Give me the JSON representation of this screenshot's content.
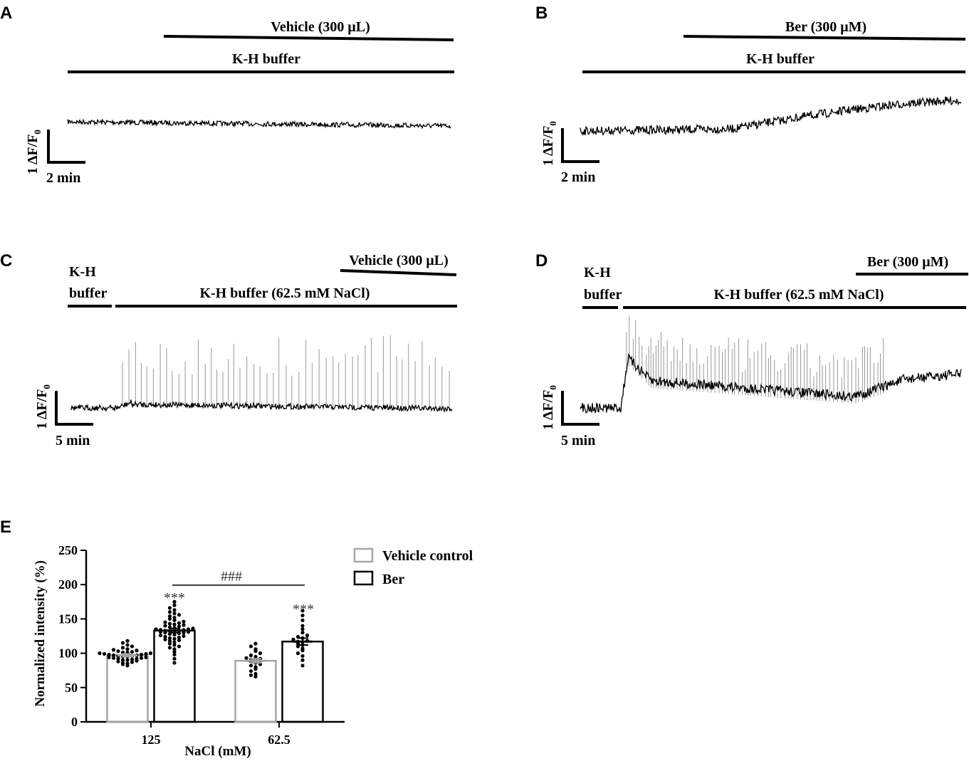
{
  "chart_data": [
    {
      "id": "A",
      "type": "line",
      "panel_label": "A",
      "treatment_bars": [
        {
          "label": "Vehicle (300 μL)"
        },
        {
          "label": "K-H buffer"
        }
      ],
      "scale_bar": {
        "y": "1 ΔF/F",
        "y_sub": "0",
        "x": "2 min"
      },
      "trace": {
        "x": [
          0,
          1
        ],
        "y": [
          0.15,
          0.0
        ]
      }
    },
    {
      "id": "B",
      "type": "line",
      "panel_label": "B",
      "treatment_bars": [
        {
          "label": "Ber (300 μM)"
        },
        {
          "label": "K-H buffer"
        }
      ],
      "scale_bar": {
        "y": "1 ΔF/F",
        "y_sub": "0",
        "x": "2 min"
      },
      "trace": {
        "x": [
          0,
          0.4,
          0.45,
          1
        ],
        "y": [
          0.0,
          0.05,
          0.1,
          0.9
        ]
      }
    },
    {
      "id": "C",
      "type": "line",
      "panel_label": "C",
      "treatment_bars": [
        {
          "label": "Vehicle (300 μL)"
        },
        {
          "label_line1": "K-H",
          "label_line2": "buffer"
        },
        {
          "label": "K-H buffer (62.5 mM NaCl)"
        }
      ],
      "scale_bar": {
        "y": "1 ΔF/F",
        "y_sub": "0",
        "x": "5 min"
      }
    },
    {
      "id": "D",
      "type": "line",
      "panel_label": "D",
      "treatment_bars": [
        {
          "label": "Ber (300 μM)"
        },
        {
          "label_line1": "K-H",
          "label_line2": "buffer"
        },
        {
          "label": "K-H buffer (62.5 mM NaCl)"
        }
      ],
      "scale_bar": {
        "y": "1 ΔF/F",
        "y_sub": "0",
        "x": "5 min"
      }
    },
    {
      "id": "E",
      "type": "bar",
      "panel_label": "E",
      "ylabel": "Normalized intensity (%)",
      "xlabel": "NaCl (mM)",
      "ylim": [
        0,
        250
      ],
      "yticks": [
        0,
        50,
        100,
        150,
        200,
        250
      ],
      "categories": [
        "125",
        "62.5"
      ],
      "series": [
        {
          "name": "Vehicle control",
          "color": "#a6a6a6",
          "values": [
            97,
            89
          ],
          "sem": [
            2,
            3
          ]
        },
        {
          "name": "Ber",
          "color": "#000000",
          "values": [
            133,
            117
          ],
          "sem": [
            3,
            5
          ]
        }
      ],
      "points": {
        "vehicle_125": [
          82,
          84,
          85,
          86,
          87,
          88,
          89,
          90,
          90,
          91,
          92,
          92,
          93,
          93,
          94,
          94,
          95,
          95,
          96,
          96,
          97,
          97,
          98,
          98,
          99,
          99,
          100,
          100,
          101,
          101,
          102,
          103,
          104,
          105,
          106,
          108,
          110,
          112,
          115,
          118
        ],
        "ber_125": [
          86,
          92,
          98,
          102,
          106,
          108,
          110,
          112,
          114,
          116,
          118,
          119,
          120,
          121,
          122,
          123,
          124,
          125,
          126,
          127,
          128,
          129,
          130,
          130,
          131,
          131,
          132,
          132,
          133,
          133,
          134,
          134,
          135,
          135,
          136,
          137,
          138,
          139,
          140,
          141,
          142,
          143,
          144,
          145,
          146,
          148,
          150,
          152,
          154,
          156,
          158,
          160,
          163,
          166,
          170,
          175
        ],
        "vehicle_62_5": [
          66,
          68,
          70,
          74,
          77,
          80,
          82,
          84,
          86,
          88,
          89,
          90,
          91,
          92,
          93,
          95,
          97,
          100,
          103,
          106,
          110,
          114
        ],
        "ber_62_5": [
          82,
          90,
          96,
          100,
          104,
          107,
          110,
          112,
          114,
          116,
          117,
          118,
          120,
          122,
          124,
          126,
          130,
          135,
          140,
          148,
          155,
          162
        ]
      },
      "annotations": {
        "sig_ber_125": "***",
        "sig_ber_62_5": "***",
        "between": "###"
      }
    }
  ]
}
